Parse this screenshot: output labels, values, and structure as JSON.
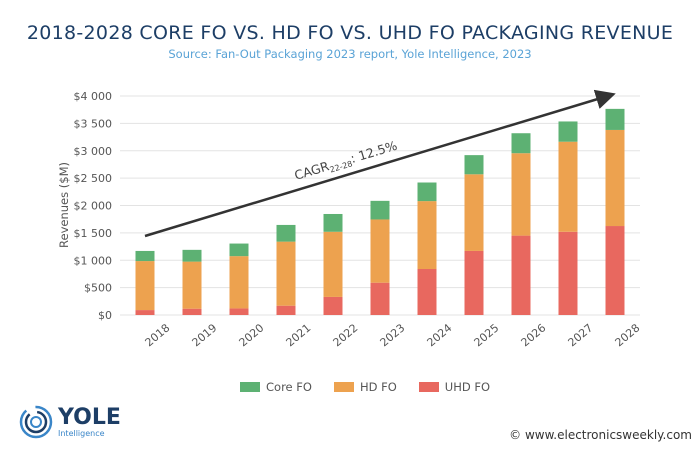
{
  "chart_data": {
    "type": "bar",
    "stacked": true,
    "title": "2018-2028 CORE FO VS. HD FO VS. UHD FO PACKAGING REVENUE",
    "subtitle": "Source: Fan-Out Packaging 2023 report, Yole Intelligence, 2023",
    "ylabel": "Revenues ($M)",
    "xlabel": "",
    "ylim": [
      0,
      4000
    ],
    "yticks": [
      "$0",
      "$500",
      "$1 000",
      "$1 500",
      "$2 000",
      "$2 500",
      "$3 000",
      "$3 500",
      "$4 000"
    ],
    "grid": true,
    "legend_position": "bottom",
    "categories": [
      "2018",
      "2019",
      "2020",
      "2021",
      "2022",
      "2023",
      "2024",
      "2025",
      "2026",
      "2027",
      "2028"
    ],
    "series": [
      {
        "name": "UHD FO",
        "color": "#e8685f",
        "values": [
          90,
          115,
          120,
          170,
          330,
          590,
          840,
          1170,
          1450,
          1520,
          1625
        ]
      },
      {
        "name": "HD FO",
        "color": "#eda24f",
        "values": [
          895,
          860,
          955,
          1170,
          1190,
          1155,
          1240,
          1400,
          1505,
          1645,
          1755
        ]
      },
      {
        "name": "Core FO",
        "color": "#5db173",
        "values": [
          185,
          215,
          230,
          305,
          325,
          340,
          340,
          350,
          365,
          370,
          385
        ]
      }
    ],
    "legend_order": [
      "Core FO",
      "HD FO",
      "UHD FO"
    ],
    "annotation": {
      "prefix": "CAGR",
      "subscript": "22-28",
      "suffix": ": 12.5%"
    }
  },
  "logo": {
    "name": "YOLE",
    "sub": "Intelligence"
  },
  "credit": "© www.electronicsweekly.com"
}
